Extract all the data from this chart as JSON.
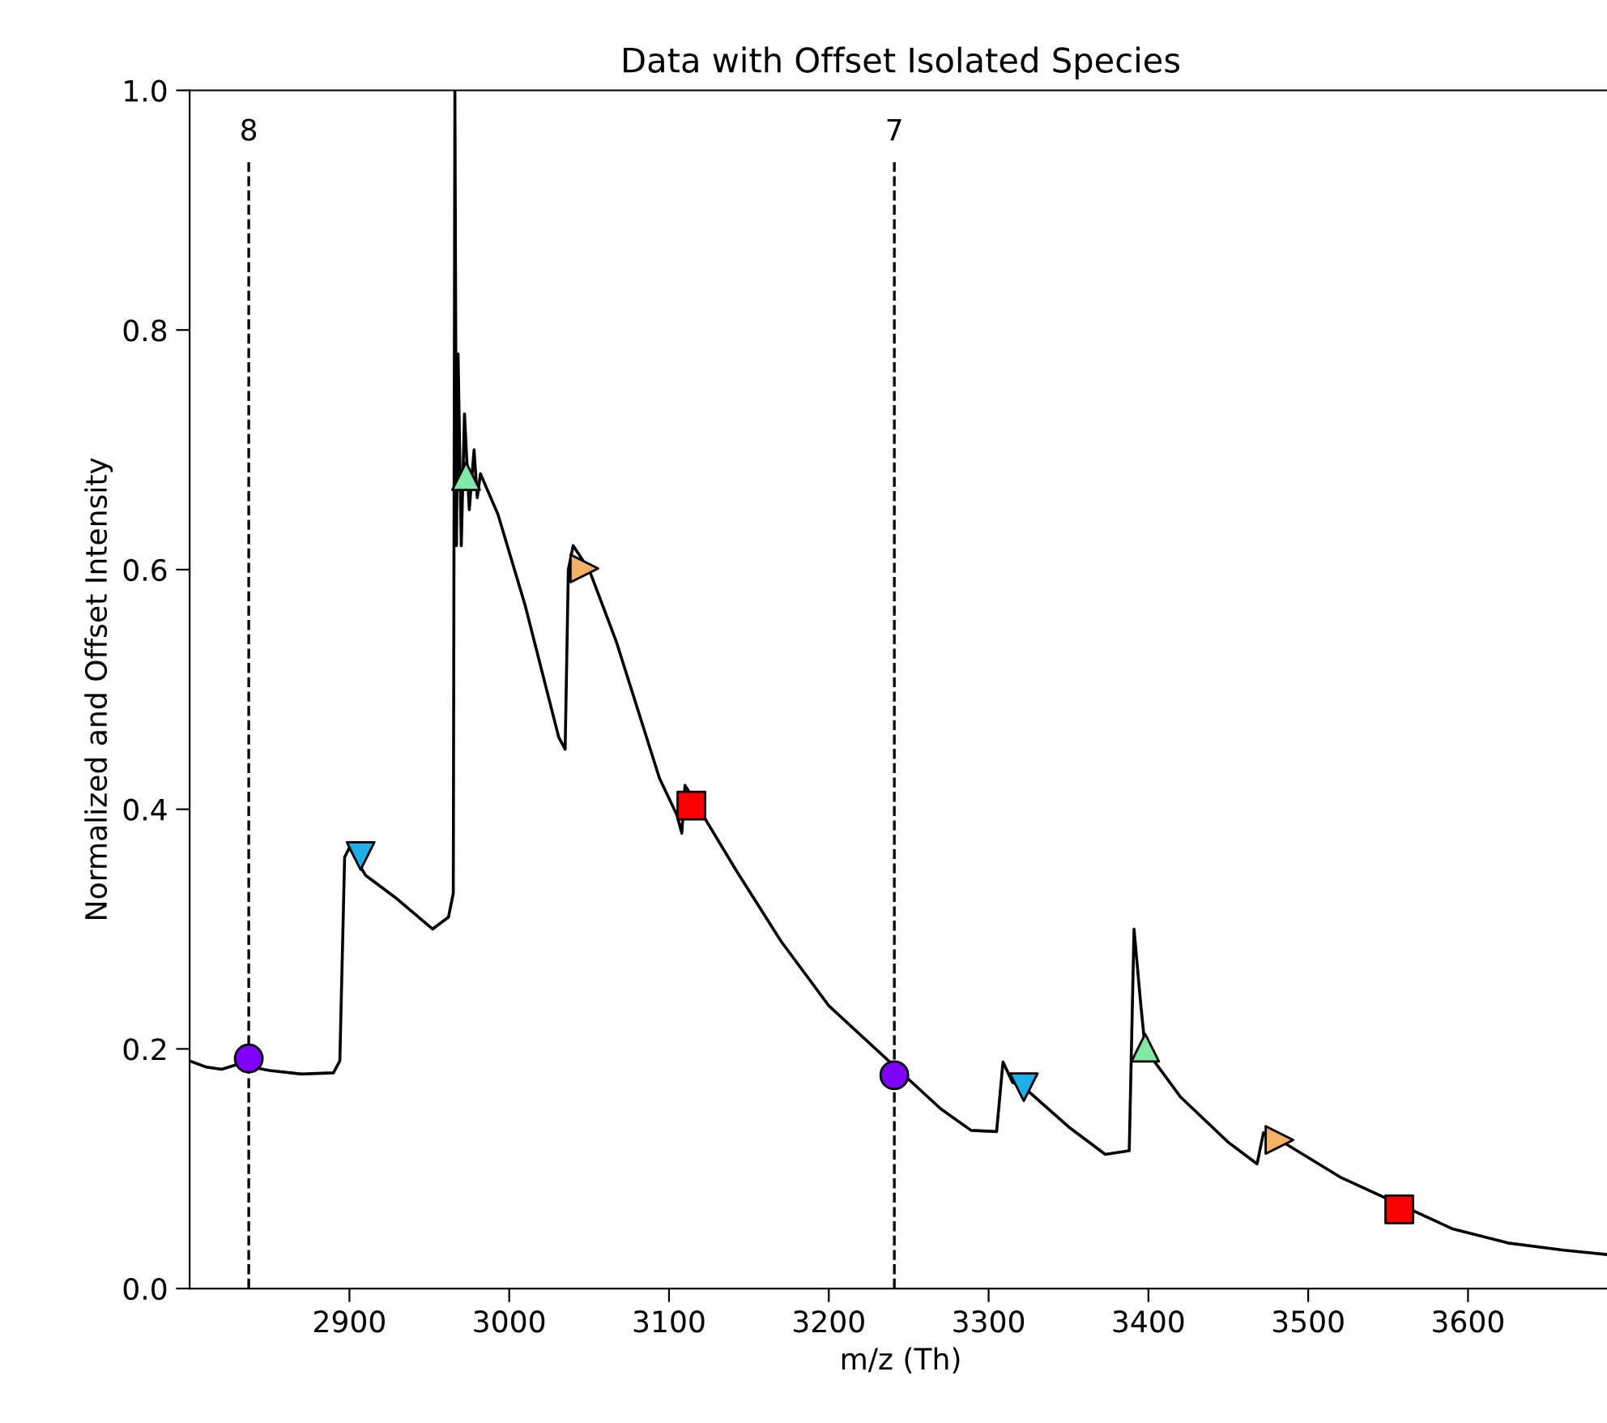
{
  "chart_data": {
    "type": "line",
    "title": "Data with Offset Isolated Species",
    "xlabel": "m/z (Th)",
    "ylabel": "Normalized and Offset Intensity",
    "xlim": [
      2800,
      3690
    ],
    "ylim": [
      0,
      1.0
    ],
    "xticks": [
      2900,
      3000,
      3100,
      3200,
      3300,
      3400,
      3500,
      3600
    ],
    "yticks": [
      {
        "value": 0,
        "label": "0.0"
      },
      {
        "value": 0.2,
        "label": "0.2"
      },
      {
        "value": 0.4,
        "label": "0.4"
      },
      {
        "value": 0.6,
        "label": "0.6"
      },
      {
        "value": 0.8,
        "label": "0.8"
      },
      {
        "value": 1.0,
        "label": "1.0"
      }
    ],
    "grid": false,
    "legend": false,
    "ref_lines": [
      {
        "axis": "x",
        "value": 2837,
        "color": "#000000",
        "line_style": "dashed"
      },
      {
        "axis": "x",
        "value": 3241,
        "color": "#000000",
        "line_style": "dashed"
      }
    ],
    "annotations": [
      "8",
      "7"
    ],
    "series": [
      {
        "color": "#000000",
        "marker": "none",
        "line_style": "solid",
        "x": [
          2800,
          2810,
          2820,
          2830,
          2850,
          2870,
          2890,
          2894,
          2897,
          2900,
          2910,
          2930,
          2952,
          2962,
          2965,
          2966,
          2967,
          2968,
          2970,
          2972,
          2975,
          2978,
          2980,
          2982,
          2993,
          3010,
          3031,
          3035,
          3037,
          3040,
          3045,
          3050,
          3067,
          3094,
          3105,
          3108,
          3110,
          3142,
          3170,
          3200,
          3270,
          3289,
          3305,
          3309,
          3315,
          3322,
          3350,
          3373,
          3388,
          3391,
          3395,
          3398,
          3420,
          3450,
          3468,
          3472,
          3482,
          3520,
          3590,
          3625,
          3660,
          3690
        ],
        "values": [
          0.19,
          0.185,
          0.183,
          0.187,
          0.182,
          0.179,
          0.18,
          0.19,
          0.36,
          0.368,
          0.345,
          0.325,
          0.3,
          0.31,
          0.33,
          1.0,
          0.62,
          0.78,
          0.62,
          0.73,
          0.65,
          0.7,
          0.66,
          0.68,
          0.646,
          0.57,
          0.46,
          0.45,
          0.6,
          0.62,
          0.61,
          0.6,
          0.54,
          0.426,
          0.395,
          0.38,
          0.42,
          0.349,
          0.29,
          0.236,
          0.15,
          0.132,
          0.131,
          0.189,
          0.172,
          0.168,
          0.135,
          0.112,
          0.115,
          0.3,
          0.24,
          0.2,
          0.16,
          0.122,
          0.104,
          0.13,
          0.124,
          0.093,
          0.05,
          0.038,
          0.032,
          0.028
        ]
      },
      {
        "type": "scatter",
        "color": "#8000ff",
        "marker": "circle",
        "x": [
          2837,
          3241
        ],
        "values": [
          0.192,
          0.178
        ]
      },
      {
        "type": "scatter",
        "color": "#1eaee8",
        "marker": "triangle_down",
        "x": [
          2907,
          3322
        ],
        "values": [
          0.361,
          0.168
        ]
      },
      {
        "type": "scatter",
        "color": "#7fe9a6",
        "marker": "triangle",
        "x": [
          2973,
          3398
        ],
        "values": [
          0.678,
          0.201
        ]
      },
      {
        "type": "scatter",
        "color": "#f6b165",
        "marker": "triangle_right",
        "x": [
          3047,
          3482
        ],
        "values": [
          0.601,
          0.124
        ]
      },
      {
        "type": "scatter",
        "color": "#ff0000",
        "marker": "square",
        "x": [
          3114,
          3557
        ],
        "values": [
          0.403,
          0.066
        ]
      }
    ]
  }
}
